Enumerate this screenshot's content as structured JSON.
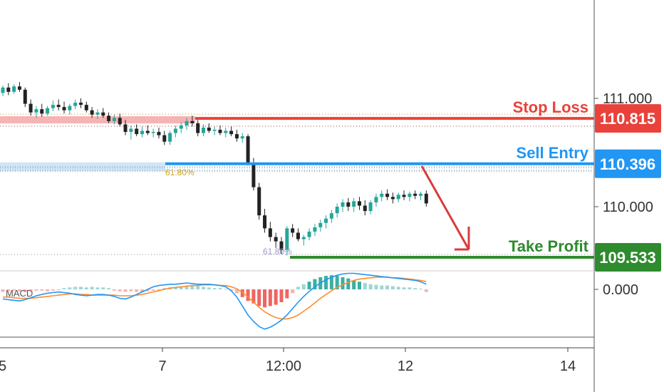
{
  "chart_data": [
    {
      "type": "candlestick",
      "y_axis_ticks": [
        "111.000",
        "110.000"
      ],
      "x_axis_ticks": [
        "5",
        "7",
        "12:00",
        "12",
        "14"
      ],
      "levels": [
        {
          "name": "Stop Loss",
          "price": 110.815,
          "price_label": "110.815",
          "color": "#e8423b"
        },
        {
          "name": "Sell Entry",
          "price": 110.396,
          "price_label": "110.396",
          "color": "#2196f3"
        },
        {
          "name": "Take Profit",
          "price": 109.533,
          "price_label": "109.533",
          "color": "#2e8b2e"
        }
      ],
      "fib_labels": [
        "61.80%",
        "61.80%"
      ],
      "candles": [
        [
          111.05,
          111.12,
          111.02,
          111.1
        ],
        [
          111.1,
          111.14,
          111.03,
          111.06
        ],
        [
          111.06,
          111.13,
          111.04,
          111.11
        ],
        [
          111.11,
          111.15,
          111.06,
          111.08
        ],
        [
          111.08,
          111.1,
          110.92,
          110.95
        ],
        [
          110.95,
          110.99,
          110.84,
          110.87
        ],
        [
          110.87,
          110.93,
          110.82,
          110.9
        ],
        [
          110.9,
          110.95,
          110.83,
          110.86
        ],
        [
          110.86,
          110.93,
          110.84,
          110.91
        ],
        [
          110.91,
          110.98,
          110.88,
          110.94
        ],
        [
          110.94,
          110.99,
          110.89,
          110.92
        ],
        [
          110.92,
          110.97,
          110.86,
          110.89
        ],
        [
          110.89,
          110.95,
          110.85,
          110.93
        ],
        [
          110.93,
          110.99,
          110.9,
          110.96
        ],
        [
          110.96,
          111.0,
          110.91,
          110.94
        ],
        [
          110.94,
          110.97,
          110.87,
          110.89
        ],
        [
          110.89,
          110.92,
          110.82,
          110.85
        ],
        [
          110.85,
          110.9,
          110.81,
          110.87
        ],
        [
          110.87,
          110.91,
          110.82,
          110.84
        ],
        [
          110.84,
          110.87,
          110.77,
          110.79
        ],
        [
          110.79,
          110.85,
          110.76,
          110.82
        ],
        [
          110.82,
          110.86,
          110.74,
          110.76
        ],
        [
          110.76,
          110.8,
          110.66,
          110.69
        ],
        [
          110.69,
          110.75,
          110.62,
          110.72
        ],
        [
          110.72,
          110.76,
          110.65,
          110.67
        ],
        [
          110.67,
          110.74,
          110.64,
          110.7
        ],
        [
          110.7,
          110.75,
          110.66,
          110.68
        ],
        [
          110.68,
          110.72,
          110.64,
          110.69
        ],
        [
          110.69,
          110.73,
          110.63,
          110.66
        ],
        [
          110.66,
          110.7,
          110.57,
          110.6
        ],
        [
          110.6,
          110.7,
          110.57,
          110.68
        ],
        [
          110.68,
          110.75,
          110.64,
          110.72
        ],
        [
          110.72,
          110.78,
          110.68,
          110.75
        ],
        [
          110.75,
          110.82,
          110.71,
          110.79
        ],
        [
          110.79,
          110.84,
          110.74,
          110.77
        ],
        [
          110.77,
          110.8,
          110.65,
          110.68
        ],
        [
          110.68,
          110.76,
          110.65,
          110.73
        ],
        [
          110.73,
          110.77,
          110.68,
          110.7
        ],
        [
          110.7,
          110.74,
          110.66,
          110.71
        ],
        [
          110.71,
          110.75,
          110.66,
          110.68
        ],
        [
          110.68,
          110.73,
          110.64,
          110.7
        ],
        [
          110.7,
          110.74,
          110.65,
          110.67
        ],
        [
          110.67,
          110.71,
          110.6,
          110.63
        ],
        [
          110.63,
          110.68,
          110.59,
          110.65
        ],
        [
          110.65,
          110.67,
          110.38,
          110.4
        ],
        [
          110.4,
          110.45,
          110.15,
          110.18
        ],
        [
          110.18,
          110.22,
          109.88,
          109.92
        ],
        [
          109.92,
          109.98,
          109.76,
          109.8
        ],
        [
          109.8,
          109.86,
          109.68,
          109.72
        ],
        [
          109.72,
          109.76,
          109.62,
          109.68
        ],
        [
          109.68,
          109.72,
          109.56,
          109.6
        ],
        [
          109.6,
          109.82,
          109.55,
          109.8
        ],
        [
          109.8,
          109.84,
          109.72,
          109.76
        ],
        [
          109.76,
          109.8,
          109.68,
          109.7
        ],
        [
          109.7,
          109.74,
          109.64,
          109.72
        ],
        [
          109.72,
          109.8,
          109.69,
          109.77
        ],
        [
          109.77,
          109.84,
          109.73,
          109.81
        ],
        [
          109.81,
          109.88,
          109.77,
          109.85
        ],
        [
          109.85,
          109.92,
          109.8,
          109.89
        ],
        [
          109.89,
          109.97,
          109.85,
          109.94
        ],
        [
          109.94,
          110.03,
          109.9,
          110.0
        ],
        [
          110.0,
          110.07,
          109.95,
          110.04
        ],
        [
          110.04,
          110.08,
          109.96,
          110.0
        ],
        [
          110.0,
          110.08,
          109.95,
          110.05
        ],
        [
          110.05,
          110.09,
          109.97,
          110.01
        ],
        [
          110.01,
          110.06,
          109.92,
          109.96
        ],
        [
          109.96,
          110.06,
          109.93,
          110.04
        ],
        [
          110.04,
          110.12,
          110.0,
          110.09
        ],
        [
          110.09,
          110.15,
          110.05,
          110.12
        ],
        [
          110.12,
          110.16,
          110.06,
          110.09
        ],
        [
          110.09,
          110.13,
          110.03,
          110.07
        ],
        [
          110.07,
          110.13,
          110.04,
          110.11
        ],
        [
          110.11,
          110.15,
          110.06,
          110.09
        ],
        [
          110.09,
          110.14,
          110.05,
          110.12
        ],
        [
          110.12,
          110.15,
          110.07,
          110.1
        ],
        [
          110.1,
          110.14,
          110.06,
          110.12
        ],
        [
          110.12,
          110.15,
          110.0,
          110.03
        ]
      ],
      "macd": {
        "label": "MACD",
        "zero_tick": "0.000",
        "histogram": [
          -0.004,
          -0.003,
          -0.002,
          -0.003,
          -0.004,
          -0.003,
          -0.002,
          -0.002,
          -0.003,
          -0.002,
          -0.001,
          0.002,
          0.003,
          0.004,
          0.004,
          0.003,
          0.004,
          0.003,
          0.003,
          0.002,
          -0.002,
          -0.003,
          -0.004,
          -0.003,
          -0.004,
          -0.004,
          -0.003,
          -0.002,
          -0.002,
          0.002,
          0.003,
          0.004,
          0.005,
          0.006,
          0.006,
          0.005,
          0.004,
          0.003,
          0.002,
          0.002,
          0.001,
          -0.002,
          -0.006,
          -0.012,
          -0.018,
          -0.022,
          -0.026,
          -0.028,
          -0.026,
          -0.024,
          -0.02,
          -0.014,
          -0.006,
          0.004,
          0.008,
          0.012,
          0.016,
          0.019,
          0.021,
          0.022,
          0.021,
          0.019,
          0.017,
          0.014,
          0.012,
          0.01,
          0.008,
          0.007,
          0.006,
          0.006,
          0.005,
          0.004,
          0.003,
          0.003,
          0.002,
          0.001,
          -0.004
        ],
        "macd_line": [
          -0.015,
          -0.016,
          -0.017,
          -0.018,
          -0.016,
          -0.013,
          -0.01,
          -0.008,
          -0.006,
          -0.005,
          -0.004,
          -0.005,
          -0.006,
          -0.008,
          -0.009,
          -0.01,
          -0.009,
          -0.008,
          -0.008,
          -0.009,
          -0.011,
          -0.014,
          -0.015,
          -0.012,
          -0.008,
          -0.004,
          0.0,
          0.004,
          0.006,
          0.007,
          0.008,
          0.008,
          0.009,
          0.01,
          0.009,
          0.008,
          0.008,
          0.008,
          0.007,
          0.006,
          0.004,
          -0.002,
          -0.012,
          -0.026,
          -0.04,
          -0.05,
          -0.058,
          -0.062,
          -0.059,
          -0.054,
          -0.048,
          -0.04,
          -0.03,
          -0.02,
          -0.011,
          -0.003,
          0.004,
          0.01,
          0.015,
          0.019,
          0.022,
          0.024,
          0.025,
          0.025,
          0.024,
          0.023,
          0.022,
          0.021,
          0.02,
          0.019,
          0.018,
          0.017,
          0.016,
          0.015,
          0.014,
          0.012,
          0.008
        ],
        "signal_line": [
          -0.012,
          -0.012,
          -0.013,
          -0.014,
          -0.014,
          -0.014,
          -0.013,
          -0.012,
          -0.011,
          -0.01,
          -0.009,
          -0.008,
          -0.007,
          -0.007,
          -0.008,
          -0.008,
          -0.009,
          -0.009,
          -0.009,
          -0.009,
          -0.009,
          -0.01,
          -0.01,
          -0.01,
          -0.009,
          -0.008,
          -0.006,
          -0.004,
          -0.002,
          0.0,
          0.002,
          0.003,
          0.004,
          0.005,
          0.006,
          0.006,
          0.007,
          0.007,
          0.007,
          0.006,
          0.006,
          0.004,
          0.001,
          -0.005,
          -0.012,
          -0.02,
          -0.028,
          -0.035,
          -0.04,
          -0.044,
          -0.046,
          -0.046,
          -0.044,
          -0.04,
          -0.034,
          -0.028,
          -0.021,
          -0.014,
          -0.008,
          -0.002,
          0.003,
          0.007,
          0.011,
          0.014,
          0.016,
          0.017,
          0.018,
          0.019,
          0.019,
          0.019,
          0.018,
          0.018,
          0.017,
          0.016,
          0.015,
          0.014,
          0.012
        ]
      },
      "colors": {
        "up": "#26a69a",
        "down": "#222222",
        "macd_line": "#2196f3",
        "signal_line": "#ff8c2e",
        "hist_pos": "#26a69a",
        "hist_neg": "#ef5350",
        "arrow": "#d93b3b"
      }
    }
  ]
}
